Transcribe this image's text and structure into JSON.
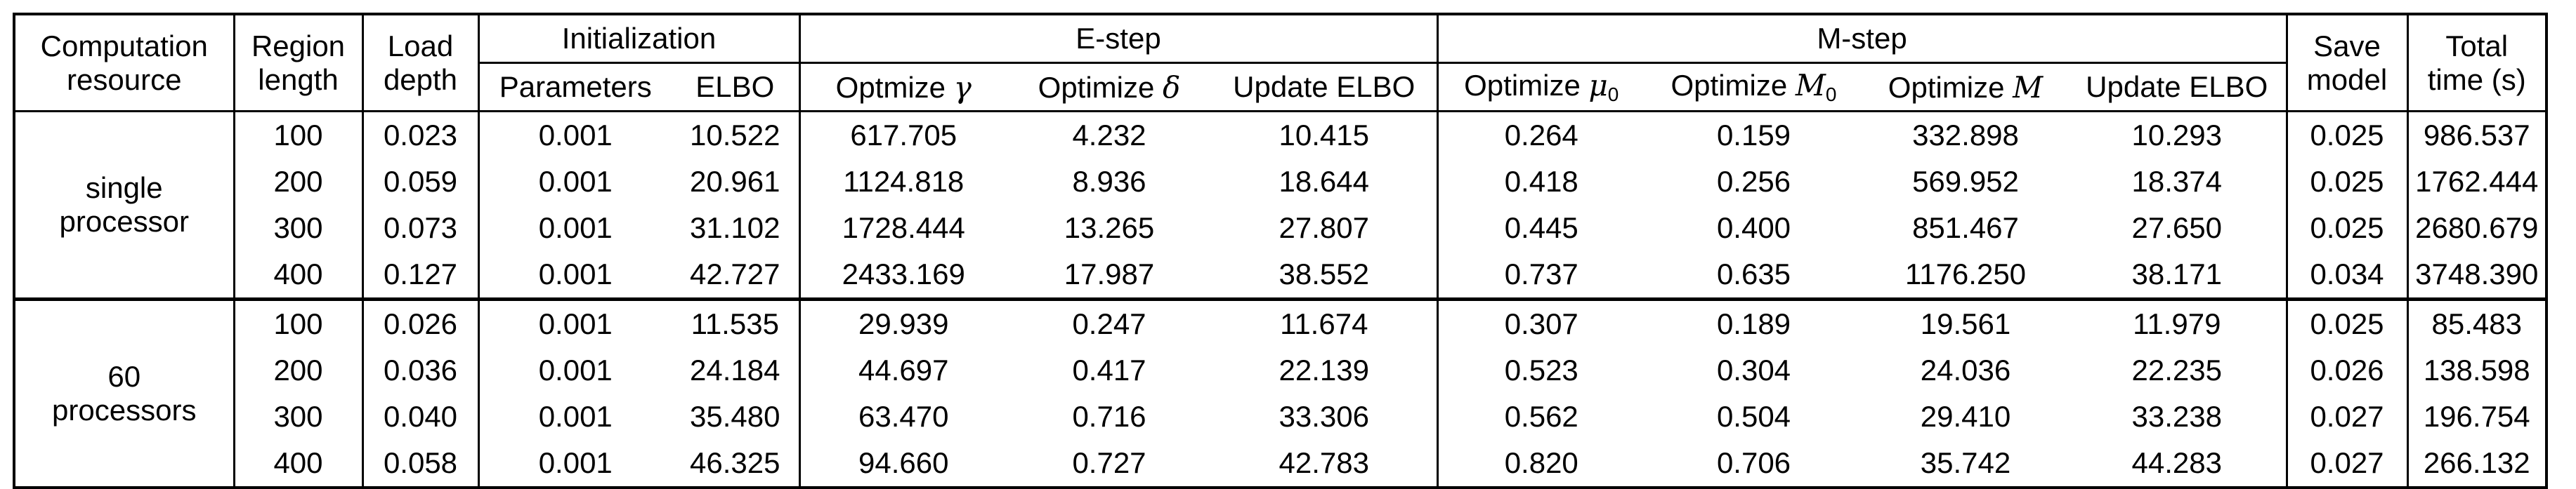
{
  "headers": {
    "computation_resource": [
      "Computation",
      "resource"
    ],
    "region_length": [
      "Region",
      "length"
    ],
    "load_depth": [
      "Load",
      "depth"
    ],
    "initialization": "Initialization",
    "parameters": "Parameters",
    "elbo": "ELBO",
    "e_step": "E-step",
    "optimize_gamma": {
      "label": "Optmize",
      "symbol": "γ"
    },
    "optimize_delta": {
      "label": "Optimize",
      "symbol": "δ"
    },
    "update_elbo_e": "Update ELBO",
    "m_step": "M-step",
    "optimize_mu0": {
      "label": "Optimize",
      "symbol": "μ",
      "sub": "0"
    },
    "optimize_M0": {
      "label": "Optimize",
      "symbol": "M",
      "sub": "0"
    },
    "optimize_M": {
      "label": "Optimize",
      "symbol": "M"
    },
    "update_elbo_m": "Update ELBO",
    "save_model": [
      "Save",
      "model"
    ],
    "total_time": [
      "Total",
      "time (s)"
    ]
  },
  "groups": [
    {
      "resource": [
        "single",
        "processor"
      ],
      "rows": [
        [
          "100",
          "0.023",
          "0.001",
          "10.522",
          "617.705",
          "4.232",
          "10.415",
          "0.264",
          "0.159",
          "332.898",
          "10.293",
          "0.025",
          "986.537"
        ],
        [
          "200",
          "0.059",
          "0.001",
          "20.961",
          "1124.818",
          "8.936",
          "18.644",
          "0.418",
          "0.256",
          "569.952",
          "18.374",
          "0.025",
          "1762.444"
        ],
        [
          "300",
          "0.073",
          "0.001",
          "31.102",
          "1728.444",
          "13.265",
          "27.807",
          "0.445",
          "0.400",
          "851.467",
          "27.650",
          "0.025",
          "2680.679"
        ],
        [
          "400",
          "0.127",
          "0.001",
          "42.727",
          "2433.169",
          "17.987",
          "38.552",
          "0.737",
          "0.635",
          "1176.250",
          "38.171",
          "0.034",
          "3748.390"
        ]
      ]
    },
    {
      "resource": [
        "60",
        "processors"
      ],
      "rows": [
        [
          "100",
          "0.026",
          "0.001",
          "11.535",
          "29.939",
          "0.247",
          "11.674",
          "0.307",
          "0.189",
          "19.561",
          "11.979",
          "0.025",
          "85.483"
        ],
        [
          "200",
          "0.036",
          "0.001",
          "24.184",
          "44.697",
          "0.417",
          "22.139",
          "0.523",
          "0.304",
          "24.036",
          "22.235",
          "0.026",
          "138.598"
        ],
        [
          "300",
          "0.040",
          "0.001",
          "35.480",
          "63.470",
          "0.716",
          "33.306",
          "0.562",
          "0.504",
          "29.410",
          "33.238",
          "0.027",
          "196.754"
        ],
        [
          "400",
          "0.058",
          "0.001",
          "46.325",
          "94.660",
          "0.727",
          "42.783",
          "0.820",
          "0.706",
          "35.742",
          "44.283",
          "0.027",
          "266.132"
        ]
      ]
    }
  ]
}
